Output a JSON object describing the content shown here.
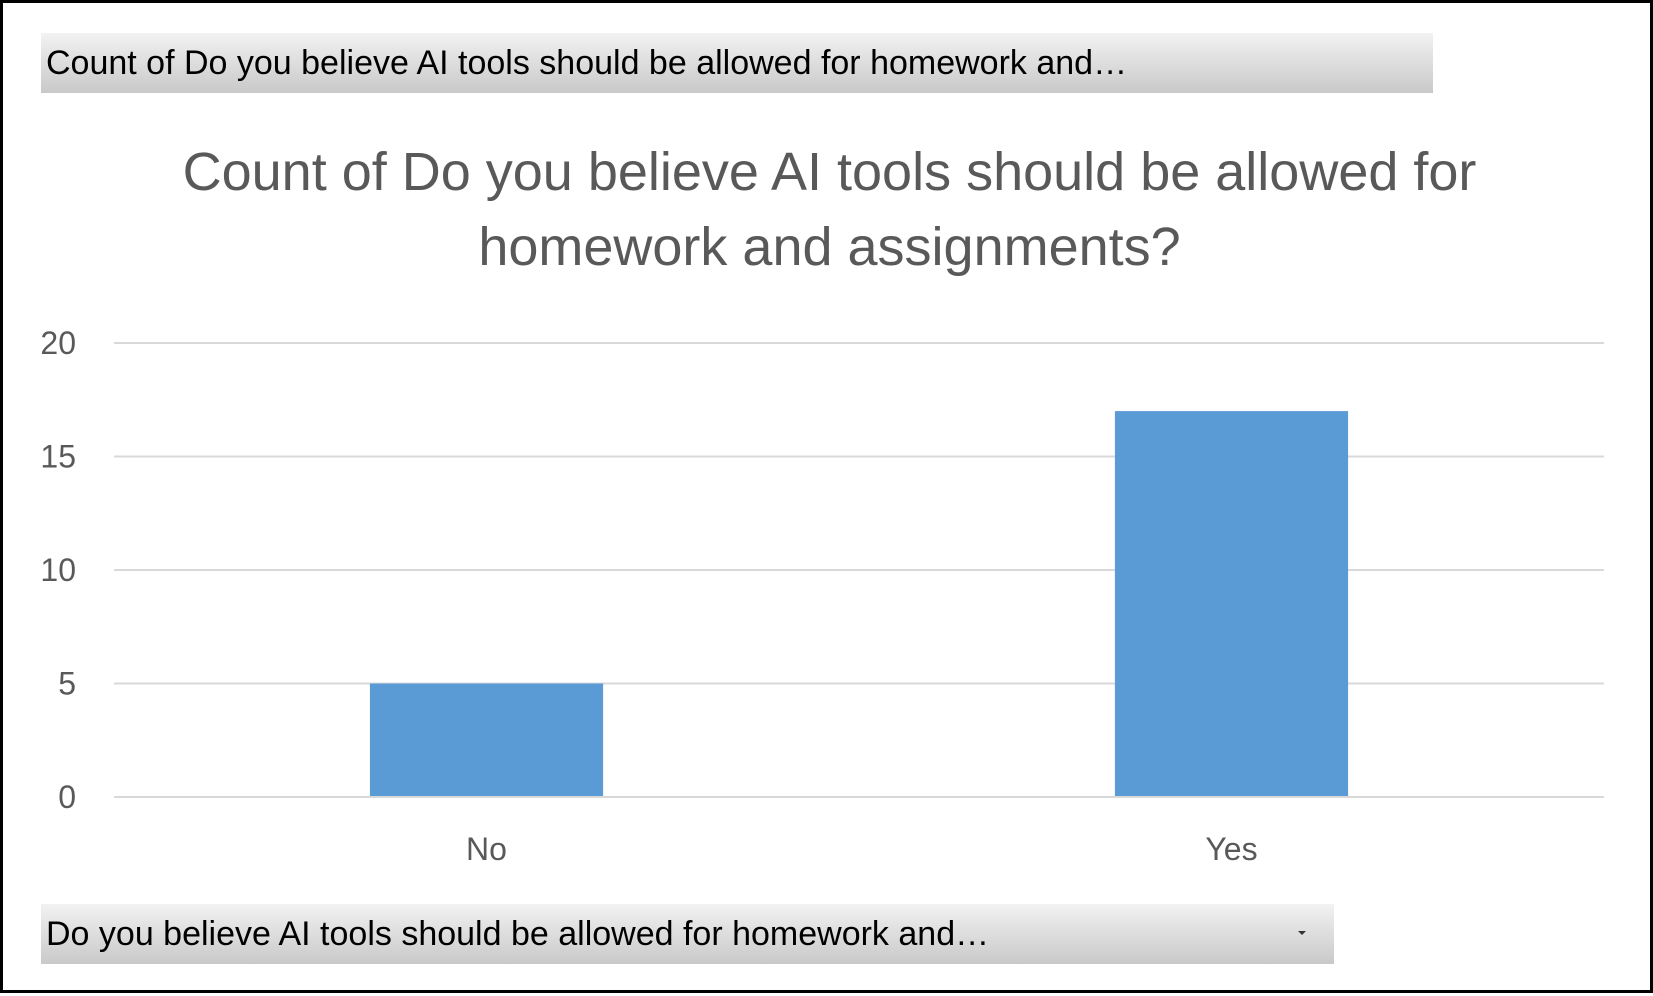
{
  "values_field_button": {
    "label": "Count of Do you believe AI tools should be allowed for homework and…"
  },
  "axis_field_button": {
    "label": "Do you believe AI tools should be allowed for homework and…",
    "icon": "chevron-down-icon"
  },
  "colors": {
    "bar": "#5b9bd5",
    "gridline": "#d9d9d9",
    "text": "#595959"
  },
  "chart_data": {
    "type": "bar",
    "title": "Count of Do you believe AI tools should be allowed for homework and assignments?",
    "categories": [
      "No",
      "Yes"
    ],
    "values": [
      5,
      17
    ],
    "xlabel": "",
    "ylabel": "",
    "ylim": [
      0,
      20
    ],
    "yticks": [
      0,
      5,
      10,
      15,
      20
    ],
    "grid": true,
    "legend": "none"
  }
}
